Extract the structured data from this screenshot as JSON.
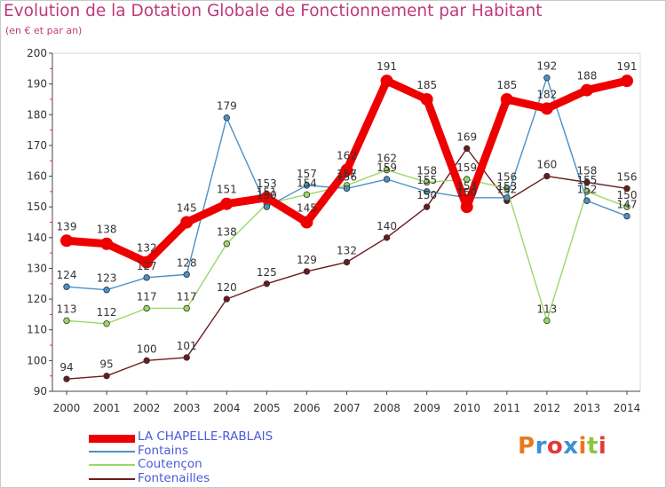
{
  "header": {
    "title": "Evolution de la Dotation Globale de Fonctionnement par Habitant",
    "subtitle": "(en € et par an)"
  },
  "logo": {
    "text": "Proxiti",
    "colors": [
      "#e87a1c",
      "#3f8fd6",
      "#e23a3a",
      "#3f8fd6",
      "#e87a1c",
      "#8cc63f",
      "#e23a3a"
    ]
  },
  "chart_data": {
    "type": "line",
    "title": "Evolution de la Dotation Globale de Fonctionnement par Habitant",
    "subtitle": "(en € et par an)",
    "x": [
      "2000",
      "2001",
      "2002",
      "2003",
      "2004",
      "2005",
      "2006",
      "2007",
      "2008",
      "2009",
      "2010",
      "2011",
      "2012",
      "2013",
      "2014"
    ],
    "ylim": [
      90,
      200
    ],
    "yticks": [
      90,
      100,
      110,
      120,
      130,
      140,
      150,
      160,
      170,
      180,
      190,
      200
    ],
    "grid": false,
    "legend_position": "bottom-left",
    "series": [
      {
        "name": "LA CHAPELLE-RABLAIS",
        "color": "#ee0000",
        "values": [
          139,
          138,
          132,
          145,
          151,
          153,
          145,
          162,
          191,
          185,
          150,
          185,
          182,
          188,
          191
        ]
      },
      {
        "name": "Fontains",
        "color": "#4a90c8",
        "values": [
          124,
          123,
          127,
          128,
          179,
          150,
          157,
          156,
          159,
          155,
          153,
          153,
          192,
          152,
          147
        ]
      },
      {
        "name": "Coutençon",
        "color": "#99d966",
        "values": [
          113,
          112,
          117,
          117,
          138,
          151,
          154,
          157,
          162,
          158,
          159,
          156,
          113,
          155,
          150
        ]
      },
      {
        "name": "Fontenailles",
        "color": "#6b1a1f",
        "values": [
          94,
          95,
          100,
          101,
          120,
          125,
          129,
          132,
          140,
          150,
          169,
          152,
          160,
          158,
          156
        ]
      }
    ]
  }
}
